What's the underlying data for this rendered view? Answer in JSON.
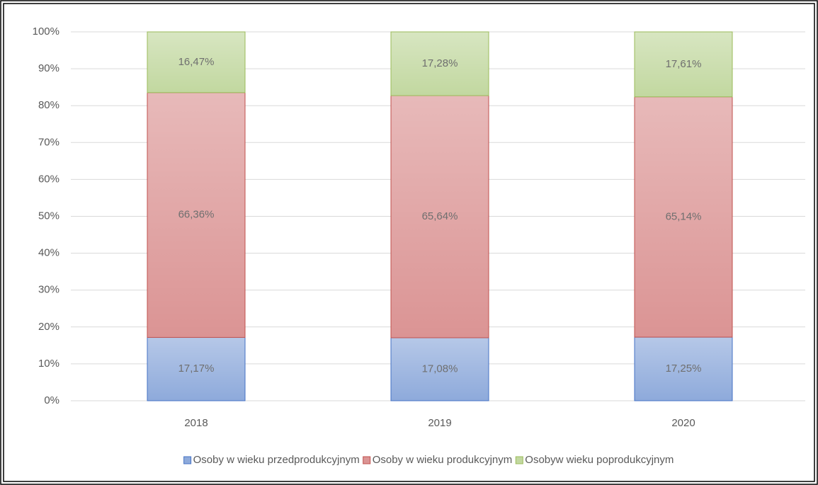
{
  "chart_data": {
    "type": "stacked_bar",
    "categories": [
      "2018",
      "2019",
      "2020"
    ],
    "series": [
      {
        "name": "Osoby w wieku przedprodukcyjnym",
        "color": "#8eaadb",
        "border": "#4472c4",
        "values": [
          17.17,
          17.08,
          17.25
        ],
        "value_labels": [
          "17,17%",
          "17,08%",
          "17,25%"
        ]
      },
      {
        "name": "Osoby w wieku produkcyjnym",
        "color": "#db9494",
        "border": "#c0504d",
        "values": [
          66.36,
          65.64,
          65.14
        ],
        "value_labels": [
          "66,36%",
          "65,64%",
          "65,14%"
        ]
      },
      {
        "name": "Osobyw wieku poprodukcyjnym",
        "color": "#c2d8a0",
        "border": "#9bbb59",
        "values": [
          16.47,
          17.28,
          17.61
        ],
        "value_labels": [
          "16,47%",
          "17,28%",
          "17,61%"
        ]
      }
    ],
    "ylim": [
      0,
      100
    ],
    "yticks": [
      {
        "value": 0,
        "label": "0%"
      },
      {
        "value": 10,
        "label": "10%"
      },
      {
        "value": 20,
        "label": "20%"
      },
      {
        "value": 30,
        "label": "30%"
      },
      {
        "value": 40,
        "label": "40%"
      },
      {
        "value": 50,
        "label": "50%"
      },
      {
        "value": 60,
        "label": "60%"
      },
      {
        "value": 70,
        "label": "70%"
      },
      {
        "value": 80,
        "label": "80%"
      },
      {
        "value": 90,
        "label": "90%"
      },
      {
        "value": 100,
        "label": "100%"
      }
    ],
    "grid": true,
    "legend": "bottom"
  }
}
